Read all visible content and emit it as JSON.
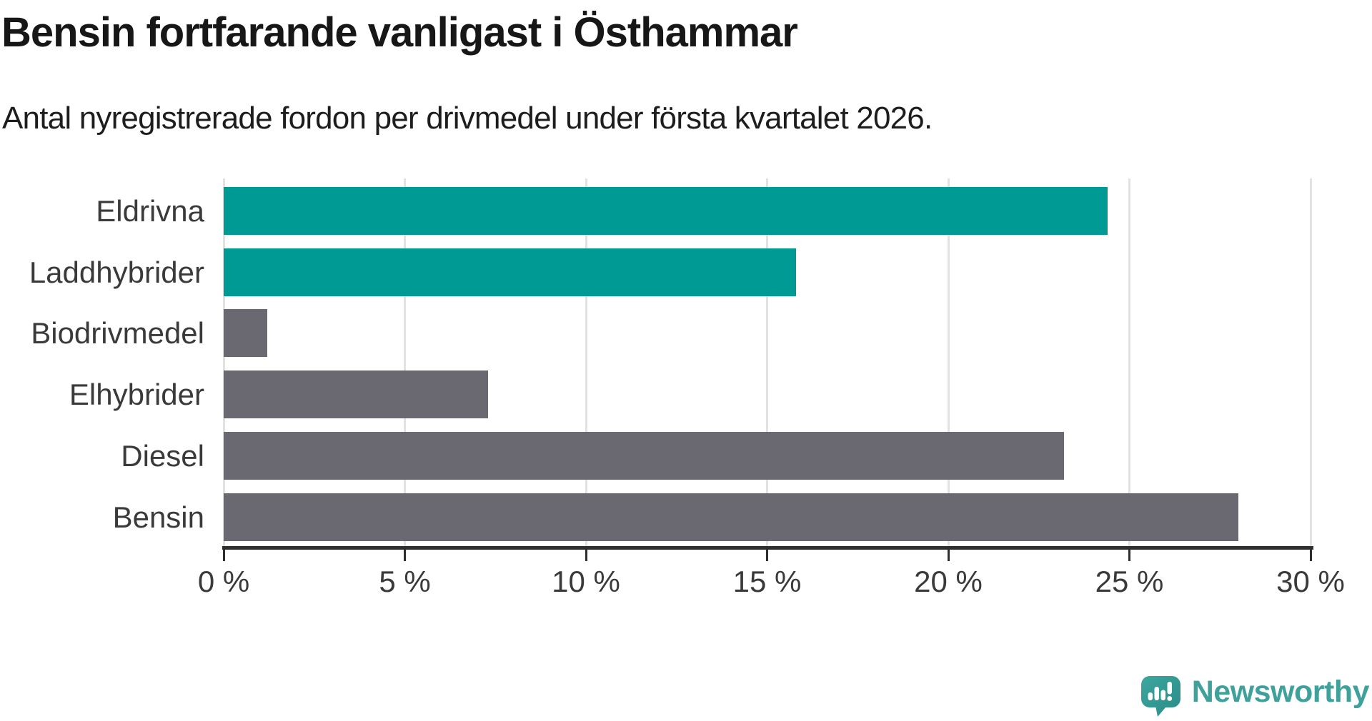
{
  "title": "Bensin fortfarande vanligast i Östhammar",
  "subtitle": "Antal nyregistrerade fordon per drivmedel under första kvartalet 2026.",
  "branding": {
    "logo_text": "Newsworthy",
    "logo_icon": "newsworthy-speech-bubble-bar-chart-icon",
    "brand_color": "#3fa19b"
  },
  "colors": {
    "highlight_bar": "#009a94",
    "default_bar": "#6a6870",
    "axis": "#2f2d30",
    "gridline": "#e2e2e2",
    "title_text": "#171717",
    "label_text": "#3a3a3a",
    "background": "#ffffff"
  },
  "chart_data": {
    "type": "bar",
    "orientation": "horizontal",
    "title": "Bensin fortfarande vanligast i Östhammar",
    "subtitle": "Antal nyregistrerade fordon per drivmedel under första kvartalet 2026.",
    "categories": [
      "Eldrivna",
      "Laddhybrider",
      "Biodrivmedel",
      "Elhybrider",
      "Diesel",
      "Bensin"
    ],
    "values": [
      24.4,
      15.8,
      1.2,
      7.3,
      23.2,
      28.0
    ],
    "unit": "%",
    "bar_color_roles": [
      "highlight",
      "highlight",
      "default",
      "default",
      "default",
      "default"
    ],
    "xlim": [
      0,
      30
    ],
    "xticks": [
      0,
      5,
      10,
      15,
      20,
      25,
      30
    ],
    "xtick_labels": [
      "0 %",
      "5 %",
      "10 %",
      "15 %",
      "20 %",
      "25 %",
      "30 %"
    ],
    "grid": true,
    "legend": false
  }
}
